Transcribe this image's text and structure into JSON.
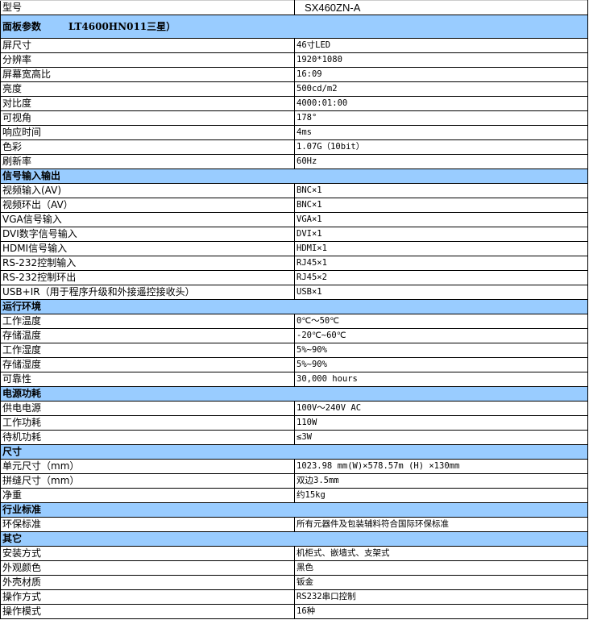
{
  "header": {
    "label": "型号",
    "value": "SX460ZN-A"
  },
  "sections": [
    {
      "title": "面板参数",
      "subtitle": "LT4600HN011三星）",
      "rows": [
        [
          "屏尺寸",
          "46寸LED"
        ],
        [
          "分辨率",
          "1920*1080"
        ],
        [
          "屏幕宽高比",
          "16:09"
        ],
        [
          "亮度",
          "500cd/m2"
        ],
        [
          "对比度",
          "4000:01:00"
        ],
        [
          "可视角",
          "178°"
        ],
        [
          "响应时间",
          "4ms"
        ],
        [
          "色彩",
          "1.07G（10bit）"
        ],
        [
          "刷新率",
          "60Hz"
        ]
      ]
    },
    {
      "title": "信号输入输出",
      "rows": [
        [
          "视频输入(AV)",
          "BNC×1"
        ],
        [
          "视频环出（AV）",
          "BNC×1"
        ],
        [
          "VGA信号输入",
          "VGA×1"
        ],
        [
          "DVI数字信号输入",
          "DVI×1"
        ],
        [
          "HDMI信号输入",
          "HDMI×1"
        ],
        [
          "RS-232控制输入",
          "RJ45×1"
        ],
        [
          "RS-232控制环出",
          "RJ45×2"
        ],
        [
          "USB+IR（用于程序升级和外接遥控接收头）",
          "USB×1"
        ]
      ]
    },
    {
      "title": "运行环境",
      "rows": [
        [
          "工作温度",
          "0℃～50℃"
        ],
        [
          "存储温度",
          "-20℃~60℃"
        ],
        [
          "工作湿度",
          "5%~90%"
        ],
        [
          "存储湿度",
          "5%~90%"
        ],
        [
          "可靠性",
          "30,000 hours"
        ]
      ]
    },
    {
      "title": "电源功耗",
      "rows": [
        [
          "供电电源",
          "100V～240V AC"
        ],
        [
          "工作功耗",
          "110W"
        ],
        [
          "待机功耗",
          "≤3W"
        ]
      ]
    },
    {
      "title": "尺寸",
      "rows": [
        [
          "单元尺寸（mm）",
          "1023.98 mm(W)×578.57m (H) ×130mm"
        ],
        [
          "拼缝尺寸（mm）",
          "双边3.5mm"
        ],
        [
          "净重",
          "约15kg"
        ]
      ]
    },
    {
      "title": "行业标准",
      "rows": [
        [
          "环保标准",
          "所有元器件及包装辅料符合国际环保标准"
        ]
      ]
    },
    {
      "title": "其它",
      "rows": [
        [
          "安装方式",
          "机柜式、嵌墙式、支架式"
        ],
        [
          "外观颜色",
          "黑色"
        ],
        [
          "外壳材质",
          "钣金"
        ],
        [
          "操作方式",
          "RS232串口控制"
        ],
        [
          " 操作模式",
          "16种"
        ]
      ]
    }
  ],
  "colors": {
    "section_bg": "#99ccff",
    "border": "#000000"
  }
}
